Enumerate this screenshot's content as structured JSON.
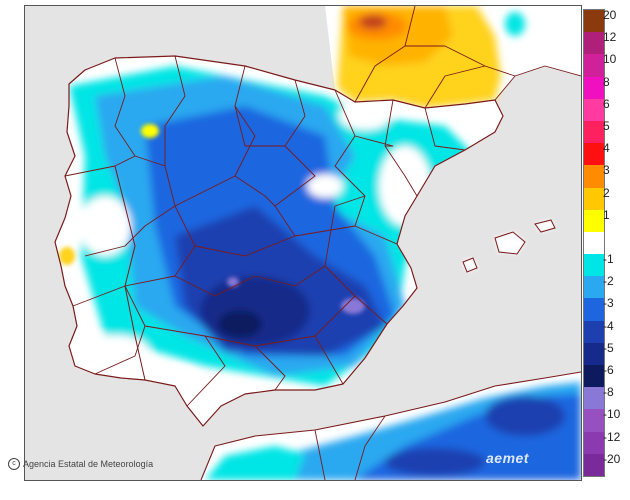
{
  "map": {
    "credit": "Agencia Estatal de Meteorología",
    "logo": "aemet",
    "colors": {
      "land": "#ffffff",
      "sea": "#e4e4e4",
      "borders": "#7a1a1a"
    }
  },
  "legend": {
    "items": [
      {
        "label": "20",
        "color": "#8b3a0e"
      },
      {
        "label": "12",
        "color": "#b0207a"
      },
      {
        "label": "10",
        "color": "#d0209a"
      },
      {
        "label": "8",
        "color": "#f010c0"
      },
      {
        "label": "6",
        "color": "#ff3aa0"
      },
      {
        "label": "5",
        "color": "#ff2060"
      },
      {
        "label": "4",
        "color": "#ff1010"
      },
      {
        "label": "3",
        "color": "#ff8c00"
      },
      {
        "label": "2",
        "color": "#ffc800"
      },
      {
        "label": "1",
        "color": "#ffff00"
      },
      {
        "label": "",
        "color": "#ffffff"
      },
      {
        "label": "-1",
        "color": "#00e5e5"
      },
      {
        "label": "-2",
        "color": "#2aa8f0"
      },
      {
        "label": "-3",
        "color": "#1e66e0"
      },
      {
        "label": "-4",
        "color": "#1e3fb0"
      },
      {
        "label": "-5",
        "color": "#152a8a"
      },
      {
        "label": "-6",
        "color": "#0e1a5e"
      },
      {
        "label": "-8",
        "color": "#8a78d6"
      },
      {
        "label": "-10",
        "color": "#9650c0"
      },
      {
        "label": "-12",
        "color": "#8c3ab0"
      },
      {
        "label": "-20",
        "color": "#7a2a9a"
      }
    ]
  }
}
